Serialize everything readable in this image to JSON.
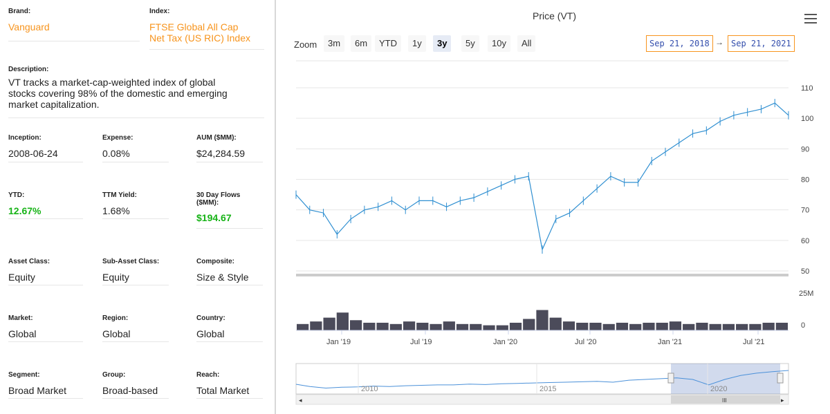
{
  "left": {
    "brand_label": "Brand:",
    "brand_value": "Vanguard",
    "index_label": "Index:",
    "index_value_1": "FTSE Global All Cap",
    "index_value_2": "Net Tax (US RIC) Index",
    "description_label": "Description:",
    "description_1": "VT tracks a market-cap-weighted index of global",
    "description_2": "stocks covering 98% of the domestic and emerging",
    "description_3": "market capitalization.",
    "inception_label": "Inception:",
    "inception_value": "2008-06-24",
    "expense_label": "Expense:",
    "expense_value": "0.08%",
    "aum_label": "AUM ($MM):",
    "aum_value": "$24,284.59",
    "ytd_label": "YTD:",
    "ytd_value": "12.67%",
    "ttm_label": "TTM Yield:",
    "ttm_value": "1.68%",
    "flows_label_1": "30 Day Flows",
    "flows_label_2": "($MM):",
    "flows_value": "$194.67",
    "asset_class_label": "Asset Class:",
    "asset_class_value": "Equity",
    "sub_asset_label": "Sub-Asset Class:",
    "sub_asset_value": "Equity",
    "composite_label": "Composite:",
    "composite_value": "Size & Style",
    "market_label": "Market:",
    "market_value": "Global",
    "region_label": "Region:",
    "region_value": "Global",
    "country_label": "Country:",
    "country_value": "Global",
    "segment_label": "Segment:",
    "segment_value": "Broad Market",
    "group_label": "Group:",
    "group_value": "Broad-based",
    "reach_label": "Reach:",
    "reach_value": "Total Market"
  },
  "chart": {
    "title": "Price (VT)",
    "zoom_label": "Zoom",
    "zoom_buttons": [
      "3m",
      "6m",
      "YTD",
      "1y",
      "3y",
      "5y",
      "10y",
      "All"
    ],
    "active_zoom": "3y",
    "from_date": "Sep 21, 2018",
    "arrow": "→",
    "to_date": "Sep 21, 2021",
    "accent_color": "#f7941d",
    "line_color": "#2f8fd1",
    "volume_color": "#4b4b5a",
    "menu_icon": "hamburger-icon"
  },
  "chart_data": {
    "type": "line",
    "title": "Price (VT)",
    "x": [
      "2018-09",
      "2018-10",
      "2018-11",
      "2018-12",
      "2019-01",
      "2019-02",
      "2019-03",
      "2019-04",
      "2019-05",
      "2019-06",
      "2019-07",
      "2019-08",
      "2019-09",
      "2019-10",
      "2019-11",
      "2019-12",
      "2020-01",
      "2020-02",
      "2020-03",
      "2020-04",
      "2020-05",
      "2020-06",
      "2020-07",
      "2020-08",
      "2020-09",
      "2020-10",
      "2020-11",
      "2020-12",
      "2021-01",
      "2021-02",
      "2021-03",
      "2021-04",
      "2021-05",
      "2021-06",
      "2021-07",
      "2021-08",
      "2021-09"
    ],
    "series": [
      {
        "values": [
          75,
          70,
          69,
          62,
          67,
          70,
          71,
          73,
          70,
          73,
          73,
          71,
          73,
          74,
          76,
          78,
          80,
          81,
          57,
          67,
          69,
          73,
          77,
          81,
          79,
          79,
          86,
          89,
          92,
          95,
          96,
          99,
          101,
          102,
          103,
          105,
          101
        ]
      },
      {
        "values": [
          5,
          7,
          10,
          14,
          8,
          6,
          6,
          5,
          7,
          6,
          5,
          7,
          5,
          5,
          4,
          4,
          6,
          9,
          16,
          10,
          7,
          6,
          6,
          5,
          6,
          5,
          6,
          6,
          7,
          5,
          6,
          5,
          5,
          5,
          5,
          6,
          6
        ]
      }
    ],
    "y_ticks": [
      "110",
      "100",
      "90",
      "80",
      "70",
      "60",
      "50"
    ],
    "volume_ticks": [
      "25M",
      "0"
    ],
    "x_ticks": [
      "Jan '19",
      "Jul '19",
      "Jan '20",
      "Jul '20",
      "Jan '21",
      "Jul '21"
    ],
    "navigator_labels": [
      "2010",
      "2015",
      "2020"
    ],
    "ylim": [
      50,
      110
    ],
    "volume_max": 25
  }
}
